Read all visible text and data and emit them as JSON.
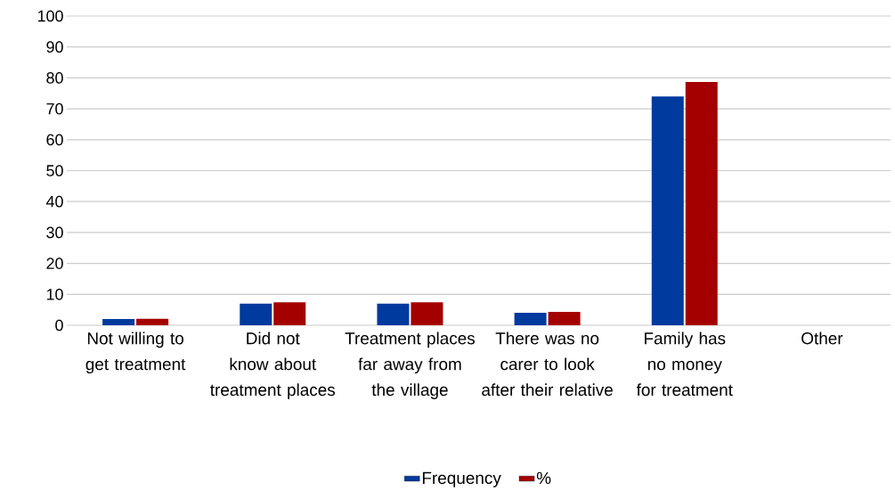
{
  "chart_data": {
    "type": "bar",
    "categories": [
      "Not willing to get treatment",
      "Did not know about treatment places",
      "Treatment places far away from the village",
      "There was no carer to look after their relative",
      "Family has no money for treatment",
      "Other"
    ],
    "series": [
      {
        "name": "Frequency",
        "color": "#003a9e",
        "values": [
          2,
          7,
          7,
          4,
          74,
          0
        ]
      },
      {
        "name": "%",
        "color": "#a50000",
        "values": [
          2.1,
          7.4,
          7.4,
          4.3,
          78.7,
          0
        ]
      }
    ],
    "ylim": [
      0,
      100
    ],
    "yticks": [
      0,
      10,
      20,
      30,
      40,
      50,
      60,
      70,
      80,
      90,
      100
    ],
    "grid": "y",
    "legend": "bottom"
  }
}
